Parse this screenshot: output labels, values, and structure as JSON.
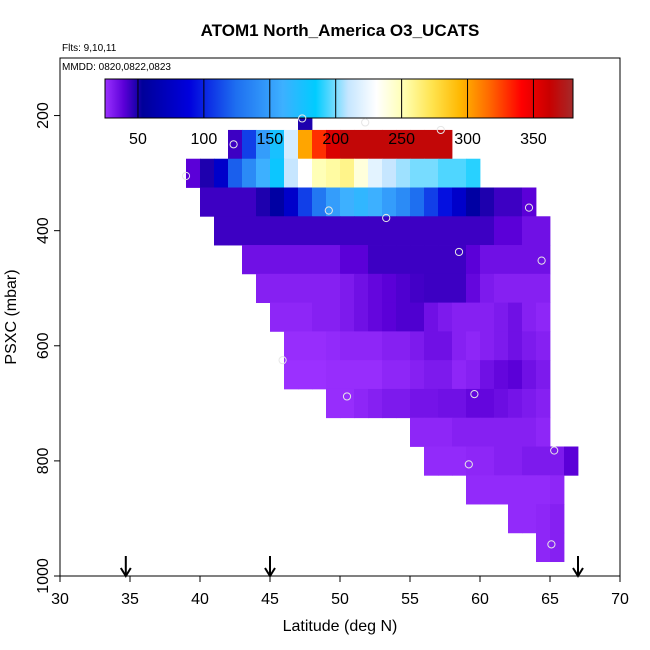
{
  "chart_data": {
    "type": "heatmap",
    "title": "ATOM1 North_America O3_UCATS",
    "subtitle_flights": "Flts: 9,10,11",
    "subtitle_dates": "MMDD: 0820,0822,0823",
    "xlabel": "Latitude (deg N)",
    "ylabel": "PSXC (mbar)",
    "xlim": [
      30,
      70
    ],
    "ylim": [
      1000,
      100
    ],
    "x_ticks": [
      "30",
      "35",
      "40",
      "45",
      "50",
      "55",
      "60",
      "65",
      "70"
    ],
    "x_tick_values": [
      30,
      35,
      40,
      45,
      50,
      55,
      60,
      65,
      70
    ],
    "y_ticks": [
      "200",
      "400",
      "600",
      "800",
      "1000"
    ],
    "y_tick_values": [
      200,
      400,
      600,
      800,
      1000
    ],
    "colorbar": {
      "range": [
        25,
        380
      ],
      "ticks": [
        "50",
        "100",
        "150",
        "200",
        "250",
        "300",
        "350"
      ],
      "tick_values": [
        50,
        100,
        150,
        200,
        250,
        300,
        350
      ]
    },
    "arrow_latitudes": [
      34.7,
      45,
      67
    ],
    "cell_size": {
      "lat_deg": 1,
      "pressure_mbar": 50
    },
    "rows": [
      {
        "p": 200,
        "lat_start": 47,
        "values": [
          50
        ]
      },
      {
        "p": 250,
        "lat_start": 42,
        "values": [
          45,
          110,
          150,
          175,
          215,
          300,
          330,
          355,
          365,
          365,
          365,
          365,
          365,
          365,
          365,
          365
        ]
      },
      {
        "p": 300,
        "lat_start": 39,
        "values": [
          40,
          50,
          80,
          120,
          140,
          160,
          180,
          210,
          230,
          250,
          255,
          260,
          240,
          220,
          210,
          205,
          200,
          200,
          195,
          195,
          190
        ]
      },
      {
        "p": 350,
        "lat_start": 40,
        "values": [
          45,
          45,
          45,
          45,
          50,
          60,
          80,
          110,
          130,
          150,
          160,
          165,
          160,
          150,
          140,
          125,
          110,
          95,
          80,
          60,
          50,
          45,
          45,
          40
        ]
      },
      {
        "p": 400,
        "lat_start": 41,
        "values": [
          45,
          45,
          45,
          45,
          45,
          45,
          45,
          45,
          45,
          45,
          45,
          45,
          45,
          45,
          45,
          45,
          45,
          45,
          45,
          45,
          40,
          40,
          35,
          35
        ]
      },
      {
        "p": 450,
        "lat_start": 43,
        "values": [
          35,
          35,
          35,
          35,
          35,
          35,
          35,
          40,
          40,
          45,
          45,
          45,
          45,
          45,
          45,
          45,
          40,
          35,
          35,
          35,
          35,
          35
        ]
      },
      {
        "p": 500,
        "lat_start": 44,
        "values": [
          30,
          30,
          30,
          30,
          30,
          30,
          32,
          35,
          38,
          40,
          42,
          44,
          45,
          45,
          45,
          38,
          32,
          30,
          30,
          30,
          30
        ]
      },
      {
        "p": 550,
        "lat_start": 45,
        "values": [
          28,
          28,
          28,
          30,
          30,
          32,
          35,
          38,
          40,
          42,
          42,
          35,
          32,
          30,
          30,
          30,
          32,
          35,
          30,
          28
        ]
      },
      {
        "p": 600,
        "lat_start": 46,
        "values": [
          26,
          26,
          26,
          27,
          28,
          28,
          28,
          30,
          30,
          32,
          35,
          35,
          30,
          28,
          30,
          32,
          35,
          32,
          30
        ]
      },
      {
        "p": 650,
        "lat_start": 46,
        "values": [
          25,
          25,
          25,
          26,
          26,
          26,
          26,
          28,
          28,
          30,
          32,
          32,
          28,
          30,
          35,
          38,
          40,
          35,
          32
        ]
      },
      {
        "p": 700,
        "lat_start": 49,
        "values": [
          26,
          26,
          28,
          30,
          32,
          32,
          34,
          34,
          35,
          35,
          38,
          38,
          36,
          34,
          32,
          30
        ]
      },
      {
        "p": 750,
        "lat_start": 55,
        "values": [
          28,
          28,
          28,
          30,
          30,
          30,
          30,
          30,
          30,
          28
        ]
      },
      {
        "p": 800,
        "lat_start": 56,
        "values": [
          27,
          27,
          27,
          28,
          28,
          30,
          30,
          32,
          32,
          32,
          40
        ]
      },
      {
        "p": 850,
        "lat_start": 59,
        "values": [
          27,
          27,
          27,
          27,
          27,
          27,
          28
        ]
      },
      {
        "p": 900,
        "lat_start": 62,
        "values": [
          27,
          27,
          28,
          30
        ]
      },
      {
        "p": 950,
        "lat_start": 64,
        "values": [
          28,
          30
        ]
      }
    ],
    "sample_points": [
      {
        "lat": 47.3,
        "p": 205
      },
      {
        "lat": 51.8,
        "p": 212
      },
      {
        "lat": 57.2,
        "p": 225
      },
      {
        "lat": 42.4,
        "p": 250
      },
      {
        "lat": 39.0,
        "p": 305
      },
      {
        "lat": 49.2,
        "p": 365
      },
      {
        "lat": 53.3,
        "p": 378
      },
      {
        "lat": 63.5,
        "p": 360
      },
      {
        "lat": 58.5,
        "p": 437
      },
      {
        "lat": 64.4,
        "p": 452
      },
      {
        "lat": 45.9,
        "p": 625
      },
      {
        "lat": 50.5,
        "p": 688
      },
      {
        "lat": 59.6,
        "p": 684
      },
      {
        "lat": 65.3,
        "p": 782
      },
      {
        "lat": 59.2,
        "p": 806
      },
      {
        "lat": 65.1,
        "p": 945
      }
    ]
  }
}
